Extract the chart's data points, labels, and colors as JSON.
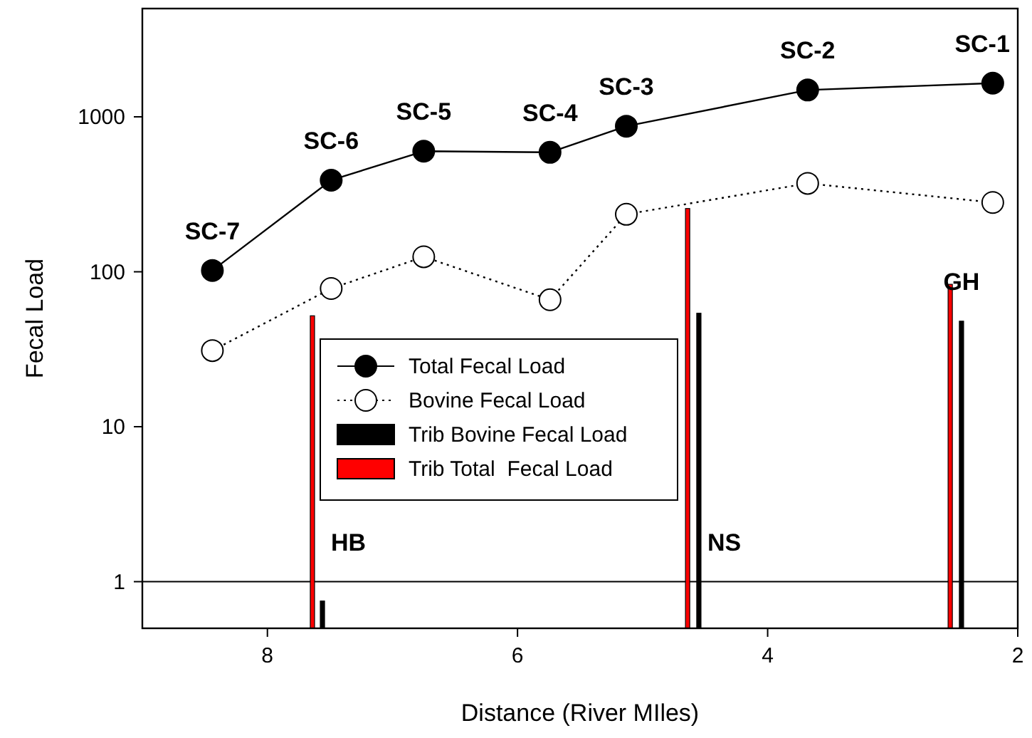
{
  "chart_data": {
    "type": "line",
    "xlabel": "Distance (River MIles)",
    "ylabel": "Fecal Load",
    "xlim": [
      9,
      2
    ],
    "xticks": [
      8,
      6,
      4,
      2
    ],
    "ylim": [
      0.5,
      5000
    ],
    "yticks": [
      1,
      10,
      100,
      1000
    ],
    "log": "y",
    "grid": false,
    "legend": "center",
    "series": [
      {
        "name": "Total Fecal Load",
        "color": "#000000",
        "marker": "circle",
        "line_style": "solid",
        "x": [
          8.44,
          7.49,
          6.75,
          5.74,
          5.13,
          3.68,
          2.2
        ],
        "values": [
          102,
          390,
          600,
          590,
          870,
          1490,
          1650
        ]
      },
      {
        "name": "Bovine Fecal Load",
        "color": "#ffffff",
        "marker": "circle",
        "line_style": "dotted",
        "x": [
          8.44,
          7.49,
          6.75,
          5.74,
          5.13,
          3.68,
          2.2
        ],
        "values": [
          31,
          78,
          125,
          66,
          235,
          372,
          280
        ]
      },
      {
        "name": "Trib Bovine Fecal Load",
        "type": "bar",
        "color": "#000000",
        "x": [
          7.56,
          4.55,
          2.45
        ],
        "values": [
          0.75,
          54,
          48
        ]
      },
      {
        "name": "Trib Total  Fecal Load",
        "type": "bar",
        "color": "#ff0000",
        "x": [
          7.64,
          4.64,
          2.54
        ],
        "values": [
          52,
          256,
          83
        ]
      }
    ],
    "ref_lines": [
      {
        "axis": "y",
        "value": 1,
        "color": "#000000"
      }
    ],
    "annotations": [
      {
        "text": "SC-7",
        "x": 8.44,
        "y": 102
      },
      {
        "text": "SC-6",
        "x": 7.49,
        "y": 390
      },
      {
        "text": "SC-5",
        "x": 6.75,
        "y": 600
      },
      {
        "text": "SC-4",
        "x": 5.74,
        "y": 590
      },
      {
        "text": "SC-3",
        "x": 5.13,
        "y": 870
      },
      {
        "text": "SC-2",
        "x": 3.68,
        "y": 1490
      },
      {
        "text": "SC-1",
        "x": 2.2,
        "y": 1650
      },
      {
        "text": "HB",
        "x": 7.56,
        "y": 1
      },
      {
        "text": "NS",
        "x": 4.55,
        "y": 1
      },
      {
        "text": "GH",
        "x": 2.45,
        "y": 48
      }
    ]
  }
}
